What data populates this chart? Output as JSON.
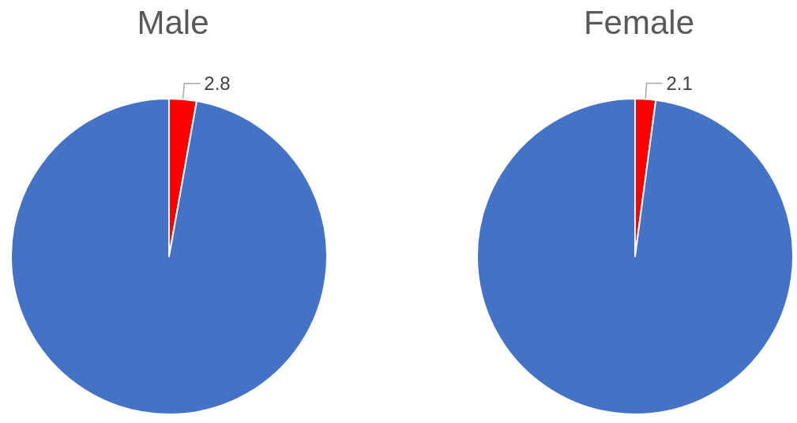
{
  "chart_data": [
    {
      "type": "pie",
      "title": "Male",
      "categories": [
        null,
        null
      ],
      "values": [
        2.8,
        97.2
      ],
      "colors": [
        "#ff0000",
        "#4472c4"
      ],
      "value_labels": [
        "2.8",
        null
      ]
    },
    {
      "type": "pie",
      "title": "Female",
      "categories": [
        null,
        null
      ],
      "values": [
        2.1,
        97.9
      ],
      "colors": [
        "#ff0000",
        "#4472c4"
      ],
      "value_labels": [
        "2.1",
        null
      ]
    }
  ]
}
